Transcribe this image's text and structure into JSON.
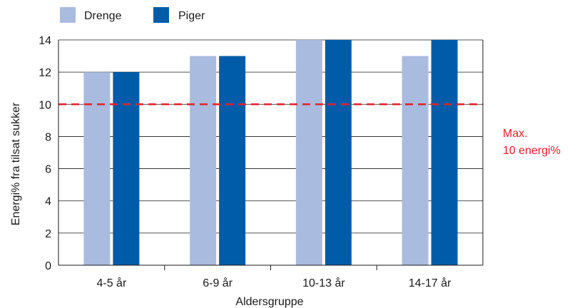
{
  "chart_data": {
    "type": "bar",
    "categories": [
      "4-5 år",
      "6-9 år",
      "10-13 år",
      "14-17 år"
    ],
    "series": [
      {
        "name": "Drenge",
        "color": "#a9bbdf",
        "values": [
          12,
          13,
          14,
          13
        ]
      },
      {
        "name": "Piger",
        "color": "#005ca8",
        "values": [
          12,
          13,
          14,
          14
        ]
      }
    ],
    "xlabel": "Aldersgruppe",
    "ylabel": "Energi% fra tilsat sukker",
    "ylim": [
      0,
      14
    ],
    "yticks": [
      0,
      2,
      4,
      6,
      8,
      10,
      12,
      14
    ],
    "grid": true,
    "legend": "top-left",
    "reference_line": {
      "value": 10,
      "color": "#e3202a",
      "style": "dashed",
      "label_line1": "Max.",
      "label_line2": "10 energi%"
    }
  }
}
